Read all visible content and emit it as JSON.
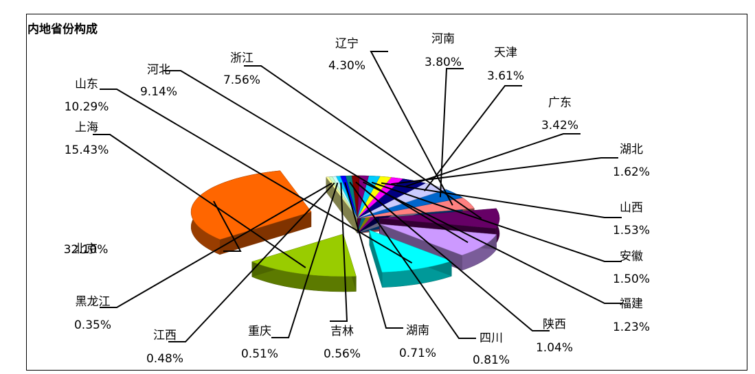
{
  "chart_data": {
    "type": "pie",
    "style": "3d-exploded",
    "title": "内地省份构成",
    "slices": [
      {
        "name": "北京",
        "value": 32.1,
        "label": "32.10%",
        "color": "#FF6600"
      },
      {
        "name": "上海",
        "value": 15.43,
        "label": "15.43%",
        "color": "#99CC00"
      },
      {
        "name": "山东",
        "value": 10.29,
        "label": "10.29%",
        "color": "#00FFFF"
      },
      {
        "name": "河北",
        "value": 9.14,
        "label": "9.14%",
        "color": "#CC99FF"
      },
      {
        "name": "浙江",
        "value": 7.56,
        "label": "7.56%",
        "color": "#660066"
      },
      {
        "name": "辽宁",
        "value": 4.3,
        "label": "4.30%",
        "color": "#FF8080"
      },
      {
        "name": "河南",
        "value": 3.8,
        "label": "3.80%",
        "color": "#0066CC"
      },
      {
        "name": "天津",
        "value": 3.61,
        "label": "3.61%",
        "color": "#CCCCFF"
      },
      {
        "name": "广东",
        "value": 3.42,
        "label": "3.42%",
        "color": "#000080"
      },
      {
        "name": "湖北",
        "value": 1.62,
        "label": "1.62%",
        "color": "#FF00FF"
      },
      {
        "name": "山西",
        "value": 1.53,
        "label": "1.53%",
        "color": "#FFFF00"
      },
      {
        "name": "安徽",
        "value": 1.5,
        "label": "1.50%",
        "color": "#00CCFF"
      },
      {
        "name": "福建",
        "value": 1.23,
        "label": "1.23%",
        "color": "#800080"
      },
      {
        "name": "陕西",
        "value": 1.04,
        "label": "1.04%",
        "color": "#800000"
      },
      {
        "name": "四川",
        "value": 0.81,
        "label": "0.81%",
        "color": "#008080"
      },
      {
        "name": "湖南",
        "value": 0.71,
        "label": "0.71%",
        "color": "#0000FF"
      },
      {
        "name": "吉林",
        "value": 0.56,
        "label": "0.56%",
        "color": "#00CCFF"
      },
      {
        "name": "重庆",
        "value": 0.51,
        "label": "0.51%",
        "color": "#CCFFFF"
      },
      {
        "name": "江西",
        "value": 0.48,
        "label": "0.48%",
        "color": "#CCFFCC"
      },
      {
        "name": "黑龙江",
        "value": 0.35,
        "label": "0.35%",
        "color": "#FFFF99"
      }
    ],
    "legend": "none"
  }
}
